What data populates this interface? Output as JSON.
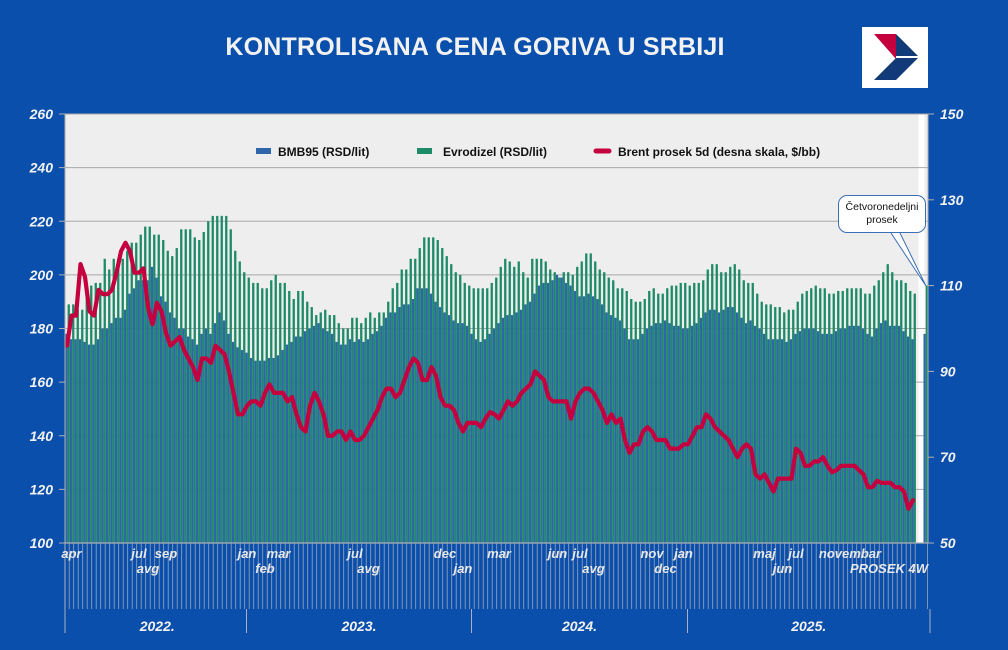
{
  "title": "KONTROLISANA CENA GORIVA U SRBIJI",
  "callout": {
    "line1": "Četvoronedeljni",
    "line2": "prosek"
  },
  "logo": {
    "name": "logo-icon"
  },
  "colors": {
    "background": "#0a4fab",
    "plot_bg": "#eeeeee",
    "bmb95": "#2f66aa",
    "diesel": "#1d8a68",
    "brent": "#c4003f"
  },
  "chart_data": {
    "type": "bar+line",
    "title": "KONTROLISANA CENA GORIVA U SRBIJI",
    "ylim_left": [
      100,
      260
    ],
    "yticks_left": [
      100,
      120,
      140,
      160,
      180,
      200,
      220,
      240,
      260
    ],
    "ylim_right": [
      50,
      150
    ],
    "yticks_right": [
      50,
      70,
      90,
      110,
      130,
      150
    ],
    "grid": true,
    "legend_position": "top",
    "legend": [
      "BMB95 (RSD/lit)",
      "Evrodizel (RSD/lit)",
      "Brent prosek  5d (desna skala, $/bb)"
    ],
    "x_tick_labels": [
      {
        "label": "apr",
        "week": 1
      },
      {
        "label": "jul",
        "week": 16
      },
      {
        "label": "avg",
        "week": 18
      },
      {
        "label": "sep",
        "week": 22
      },
      {
        "label": "jan",
        "week": 40
      },
      {
        "label": "feb",
        "week": 44
      },
      {
        "label": "mar",
        "week": 47
      },
      {
        "label": "jul",
        "week": 64
      },
      {
        "label": "avg",
        "week": 67
      },
      {
        "label": "dec",
        "week": 84
      },
      {
        "label": "jan",
        "week": 88
      },
      {
        "label": "mar",
        "week": 96
      },
      {
        "label": "jun",
        "week": 109
      },
      {
        "label": "jul",
        "week": 114
      },
      {
        "label": "avg",
        "week": 117
      },
      {
        "label": "nov",
        "week": 130
      },
      {
        "label": "dec",
        "week": 133
      },
      {
        "label": "jan",
        "week": 137
      },
      {
        "label": "maj",
        "week": 155
      },
      {
        "label": "jun",
        "week": 159
      },
      {
        "label": "jul",
        "week": 162
      },
      {
        "label": "novembar",
        "week": 174
      }
    ],
    "average_label": "PROSEK 4W",
    "years": [
      {
        "label": "2022.",
        "from_week": 0,
        "to_week": 40
      },
      {
        "label": "2023.",
        "from_week": 40,
        "to_week": 90
      },
      {
        "label": "2024.",
        "from_week": 90,
        "to_week": 138
      },
      {
        "label": "2025.",
        "from_week": 138,
        "to_week": 189
      }
    ],
    "series": [
      {
        "name": "BMB95 (RSD/lit)",
        "axis": "left",
        "kind": "bar",
        "average_4w": 178,
        "values": [
          178,
          176,
          176,
          176,
          175,
          174,
          174,
          176,
          180,
          180,
          182,
          184,
          184,
          187,
          193,
          195,
          198,
          198,
          198,
          203,
          199,
          192,
          190,
          186,
          184,
          180,
          180,
          177,
          176,
          174,
          178,
          180,
          178,
          182,
          186,
          183,
          178,
          175,
          173,
          172,
          171,
          169,
          168,
          168,
          168,
          169,
          169,
          170,
          172,
          174,
          175,
          177,
          177,
          179,
          180,
          181,
          182,
          180,
          179,
          178,
          175,
          174,
          174,
          176,
          175,
          176,
          175,
          176,
          178,
          179,
          181,
          184,
          186,
          186,
          188,
          189,
          189,
          191,
          195,
          195,
          195,
          193,
          190,
          188,
          186,
          185,
          183,
          182,
          182,
          181,
          178,
          176,
          175,
          176,
          178,
          180,
          182,
          184,
          185,
          185,
          186,
          187,
          189,
          190,
          193,
          196,
          197,
          197,
          198,
          200,
          199,
          197,
          196,
          194,
          192,
          192,
          193,
          192,
          191,
          189,
          186,
          185,
          184,
          183,
          180,
          176,
          176,
          176,
          178,
          180,
          181,
          182,
          182,
          183,
          182,
          181,
          181,
          180,
          180,
          181,
          182,
          184,
          186,
          187,
          187,
          186,
          187,
          188,
          188,
          186,
          184,
          182,
          183,
          181,
          180,
          178,
          176,
          176,
          176,
          176,
          175,
          176,
          178,
          179,
          180,
          180,
          180,
          179,
          178,
          178,
          178,
          179,
          180,
          180,
          181,
          181,
          181,
          180,
          178,
          177,
          180,
          182,
          183,
          181,
          181,
          181,
          179,
          177,
          176
        ]
      },
      {
        "name": "Evrodizel (RSD/lit)",
        "axis": "left",
        "kind": "bar",
        "average_4w": 196,
        "values": [
          189,
          189,
          187,
          187,
          192,
          196,
          197,
          197,
          206,
          202,
          206,
          206,
          206,
          209,
          212,
          212,
          215,
          218,
          218,
          215,
          215,
          213,
          209,
          207,
          210,
          217,
          217,
          217,
          214,
          213,
          216,
          220,
          222,
          222,
          222,
          222,
          217,
          209,
          205,
          201,
          199,
          197,
          197,
          195,
          195,
          198,
          200,
          197,
          197,
          194,
          191,
          194,
          194,
          190,
          188,
          185,
          186,
          187,
          185,
          185,
          182,
          180,
          180,
          184,
          184,
          182,
          184,
          186,
          184,
          186,
          186,
          190,
          195,
          197,
          202,
          202,
          206,
          206,
          210,
          214,
          214,
          214,
          213,
          210,
          207,
          204,
          201,
          200,
          197,
          196,
          195,
          195,
          195,
          195,
          197,
          199,
          203,
          206,
          205,
          203,
          205,
          201,
          199,
          206,
          206,
          206,
          205,
          202,
          201,
          199,
          201,
          201,
          200,
          203,
          205,
          208,
          208,
          205,
          202,
          201,
          199,
          198,
          195,
          195,
          194,
          191,
          190,
          190,
          191,
          194,
          195,
          193,
          193,
          195,
          196,
          196,
          197,
          197,
          196,
          197,
          197,
          198,
          202,
          204,
          204,
          201,
          201,
          203,
          204,
          202,
          198,
          197,
          197,
          193,
          190,
          189,
          189,
          188,
          188,
          186,
          187,
          187,
          190,
          193,
          194,
          195,
          196,
          195,
          195,
          193,
          193,
          194,
          194,
          195,
          195,
          195,
          195,
          193,
          193,
          196,
          198,
          201,
          204,
          201,
          198,
          198,
          197,
          194,
          193
        ]
      },
      {
        "name": "Brent prosek  5d (desna skala, $/bb)",
        "axis": "right",
        "kind": "line",
        "values": [
          96,
          103,
          103,
          115,
          112,
          104,
          103,
          109,
          108,
          108,
          109,
          113,
          118,
          120,
          118,
          113,
          113,
          114,
          105,
          101,
          106,
          104,
          99,
          96,
          97,
          98,
          95,
          93,
          91,
          88,
          93,
          93,
          92,
          96,
          95,
          94,
          90,
          85,
          80,
          80,
          82,
          83,
          83,
          82,
          85,
          87,
          85,
          85,
          85,
          83,
          84,
          80,
          77,
          76,
          82,
          85,
          83,
          80,
          75,
          75,
          76,
          76,
          74,
          76,
          74,
          74,
          75,
          77,
          79,
          81,
          84,
          86,
          86,
          84,
          85,
          88,
          91,
          93,
          92,
          88,
          88,
          91,
          89,
          84,
          82,
          82,
          81,
          78,
          76,
          78,
          78,
          78,
          77,
          79,
          80.5,
          80,
          79,
          81,
          83,
          82,
          83,
          85,
          86,
          87,
          90,
          89,
          88,
          84,
          83,
          83,
          83,
          83,
          79,
          83,
          85,
          86,
          86,
          85,
          83,
          81,
          78,
          80,
          78,
          79,
          74,
          71,
          73,
          73,
          76,
          77,
          76,
          74,
          74,
          74,
          72,
          72,
          72,
          73,
          73,
          75,
          77,
          77,
          80,
          79,
          77,
          76,
          75,
          74,
          72,
          70,
          72,
          73,
          72,
          66,
          65,
          66,
          64,
          62,
          65,
          65,
          65,
          65,
          72,
          71,
          68,
          68,
          69,
          69,
          70,
          68,
          66.5,
          67,
          68,
          68,
          68,
          68,
          67,
          66,
          63,
          63,
          64.5,
          64,
          64,
          64,
          63,
          63,
          62,
          58,
          60
        ]
      }
    ]
  }
}
